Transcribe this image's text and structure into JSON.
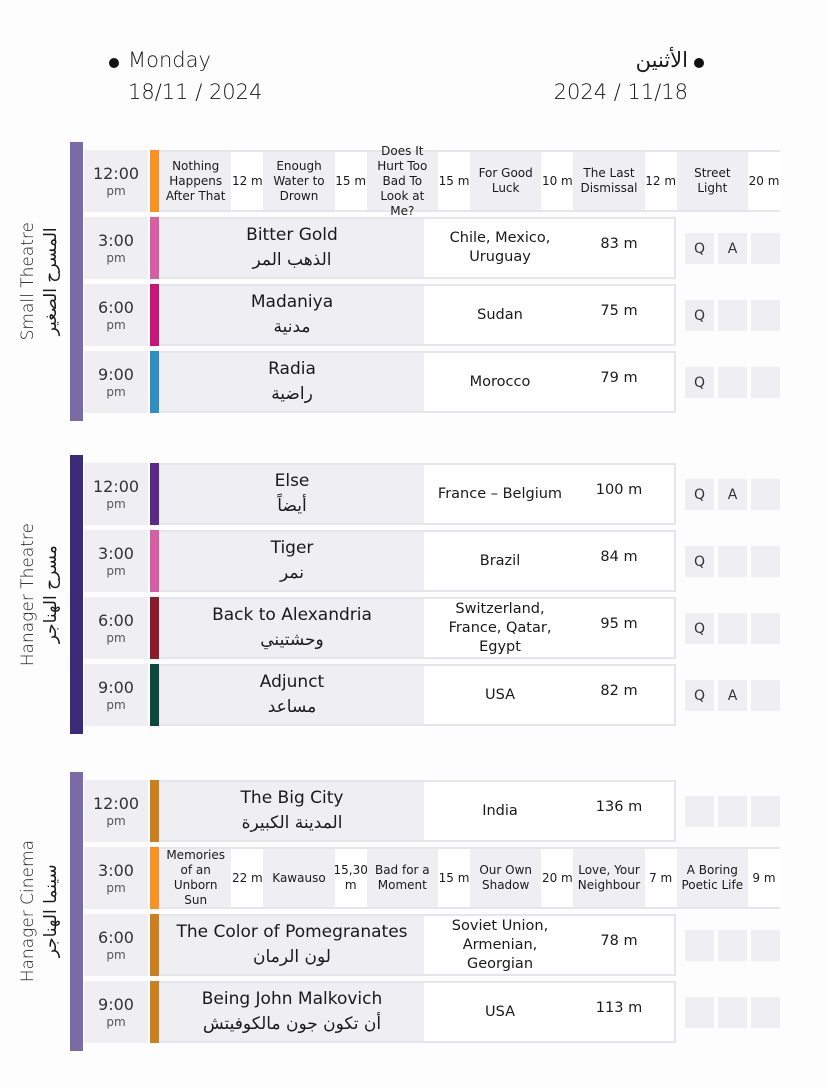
{
  "header": {
    "day_en": "Monday",
    "date_en": "18/11 / 2024",
    "day_ar": "الأثنين",
    "date_ar": "2024 / 11/18"
  },
  "venues": [
    {
      "name_en": "Small Theatre",
      "name_ar": "المسرح الصغير",
      "color": "#7c6aa6",
      "slots": [
        {
          "time": "12:00",
          "period": "pm",
          "color": "#f7931e",
          "films": [
            {
              "title": "Nothing Happens After That",
              "duration": "12 m"
            },
            {
              "title": "Enough Water to Drown",
              "duration": "15 m"
            },
            {
              "title": "Does It Hurt Too Bad To Look at Me?",
              "duration": "15 m"
            },
            {
              "title": "For Good Luck",
              "duration": "10 m"
            },
            {
              "title": "The Last Dismissal",
              "duration": "12 m"
            },
            {
              "title": "Street Light",
              "duration": "20 m"
            }
          ]
        },
        {
          "time": "3:00",
          "period": "pm",
          "color": "#d65fa3",
          "title_en": "Bitter Gold",
          "title_ar": "الذهب المر",
          "country": "Chile, Mexico, Uruguay",
          "duration": "83 m",
          "badges": [
            "Q",
            "A"
          ]
        },
        {
          "time": "6:00",
          "period": "pm",
          "color": "#c7157a",
          "title_en": "Madaniya",
          "title_ar": "مدنية",
          "country": "Sudan",
          "duration": "75 m",
          "badges": [
            "Q"
          ]
        },
        {
          "time": "9:00",
          "period": "pm",
          "color": "#2e8fc0",
          "title_en": "Radia",
          "title_ar": "راضية",
          "country": "Morocco",
          "duration": "79 m",
          "badges": [
            "Q"
          ]
        }
      ]
    },
    {
      "name_en": "Hanager Theatre",
      "name_ar": "مسرح الهناجر",
      "color": "#3a2a78",
      "slots": [
        {
          "time": "12:00",
          "period": "pm",
          "color": "#5b2a86",
          "title_en": "Else",
          "title_ar": "أيضاً",
          "country": "France – Belgium",
          "duration": "100 m",
          "badges": [
            "Q",
            "A"
          ]
        },
        {
          "time": "3:00",
          "period": "pm",
          "color": "#d65fa3",
          "title_en": "Tiger",
          "title_ar": "نمر",
          "country": "Brazil",
          "duration": "84 m",
          "badges": [
            "Q"
          ]
        },
        {
          "time": "6:00",
          "period": "pm",
          "color": "#8b1a2b",
          "title_en": "Back to Alexandria",
          "title_ar": "وحشتيني",
          "country": "Switzerland, France, Qatar, Egypt",
          "duration": "95 m",
          "badges": [
            "Q"
          ]
        },
        {
          "time": "9:00",
          "period": "pm",
          "color": "#0d4a3e",
          "title_en": "Adjunct",
          "title_ar": "مساعد",
          "country": "USA",
          "duration": "82 m",
          "badges": [
            "Q",
            "A"
          ]
        }
      ]
    },
    {
      "name_en": "Hanager Cinema",
      "name_ar": "سينما الهناجر",
      "color": "#7c6aa6",
      "slots": [
        {
          "time": "12:00",
          "period": "pm",
          "color": "#c9801d",
          "title_en": "The Big City",
          "title_ar": "المدينة الكبيرة",
          "country": "India",
          "duration": "136 m",
          "badges": []
        },
        {
          "time": "3:00",
          "period": "pm",
          "color": "#f7931e",
          "films": [
            {
              "title": "Memories of an Unborn Sun",
              "duration": "22 m"
            },
            {
              "title": "Kawauso",
              "duration": "15,30 m"
            },
            {
              "title": "Bad for a Moment",
              "duration": "15 m"
            },
            {
              "title": "Our Own Shadow",
              "duration": "20 m"
            },
            {
              "title": "Love, Your Neighbour",
              "duration": "7 m"
            },
            {
              "title": "A Boring Poetic Life",
              "duration": "9 m"
            }
          ]
        },
        {
          "time": "6:00",
          "period": "pm",
          "color": "#c9801d",
          "title_en": "The Color of Pomegranates",
          "title_ar": "لون الرمان",
          "country": "Soviet Union, Armenian, Georgian",
          "duration": "78 m",
          "badges": []
        },
        {
          "time": "9:00",
          "period": "pm",
          "color": "#c9801d",
          "title_en": "Being John Malkovich",
          "title_ar": "أن تكون جون مالكوفيتش",
          "country": "USA",
          "duration": "113 m",
          "badges": []
        }
      ]
    }
  ]
}
